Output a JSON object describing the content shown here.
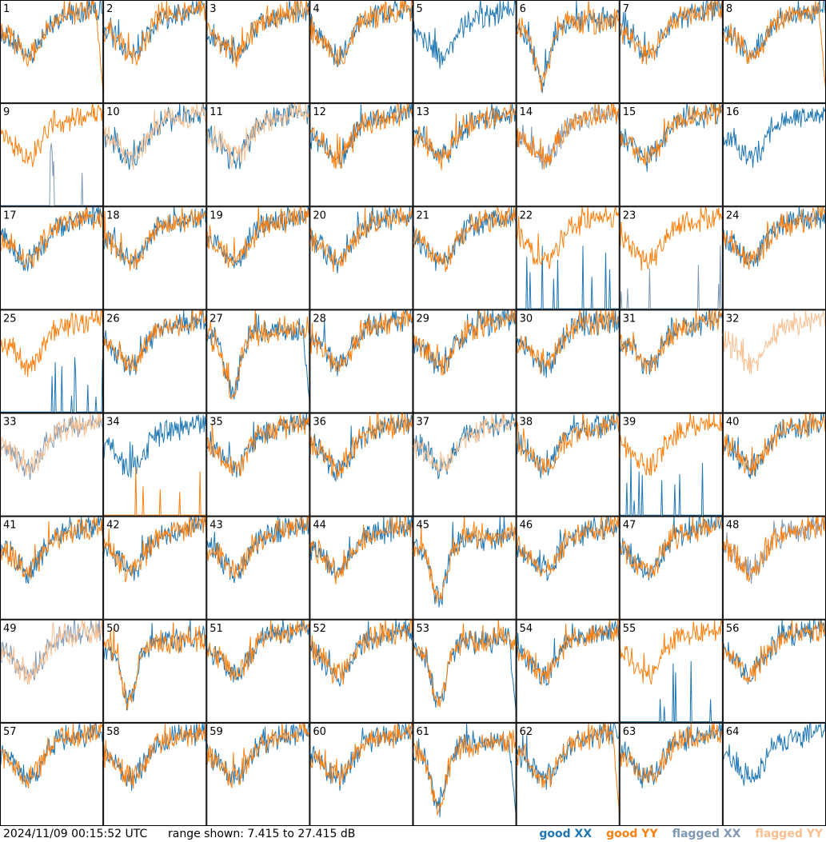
{
  "footer": {
    "timestamp": "2024/11/09 00:15:52 UTC",
    "range_label": "range shown: 7.415 to 27.415 dB"
  },
  "legend": [
    {
      "label": "good XX",
      "color": "#1f77b4"
    },
    {
      "label": "good YY",
      "color": "#ff7f0e"
    },
    {
      "label": "flagged XX",
      "color": "#7f99b4"
    },
    {
      "label": "flagged YY",
      "color": "#fbbf8f"
    }
  ],
  "chart_data": {
    "type": "line",
    "ylim": [
      7.415,
      27.415
    ],
    "panel_labels": [
      "1",
      "2",
      "3",
      "4",
      "5",
      "6",
      "7",
      "8",
      "9",
      "10",
      "11",
      "12",
      "13",
      "14",
      "15",
      "16",
      "17",
      "18",
      "19",
      "20",
      "21",
      "22",
      "23",
      "24",
      "25",
      "26",
      "27",
      "28",
      "29",
      "30",
      "31",
      "32",
      "33",
      "34",
      "35",
      "36",
      "37",
      "38",
      "39",
      "40",
      "41",
      "42",
      "43",
      "44",
      "45",
      "46",
      "47",
      "48",
      "49",
      "50",
      "51",
      "52",
      "53",
      "54",
      "55",
      "56",
      "57",
      "58",
      "59",
      "60",
      "61",
      "62",
      "63",
      "64"
    ],
    "panel_status": {
      "xx_flagged": [
        9,
        14,
        23,
        33,
        48,
        49
      ],
      "yy_flagged": [
        5,
        10,
        11,
        16,
        32,
        33,
        37,
        49,
        64
      ],
      "xx_absent": [
        32
      ],
      "yy_absent": [
        5,
        16,
        64
      ]
    },
    "panel_shapes": {
      "dip": [
        6,
        27,
        45,
        50,
        53,
        61
      ],
      "drop_to_floor_end": [
        1,
        8,
        27,
        53,
        61,
        62
      ],
      "spiky_floor": [
        5,
        9,
        16,
        22,
        23,
        25,
        32,
        34,
        39,
        55,
        64
      ]
    }
  }
}
